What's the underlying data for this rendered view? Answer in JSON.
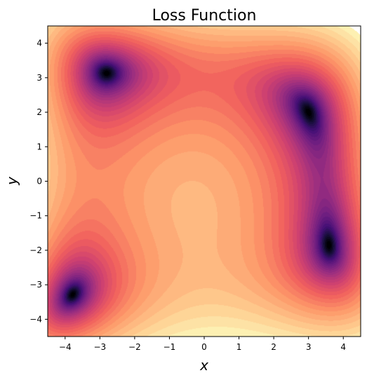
{
  "chart_data": {
    "type": "heatmap",
    "subtype": "filled-contour",
    "title": "Loss Function",
    "xlabel": "x",
    "ylabel": "y",
    "xlim": [
      -4.5,
      4.5
    ],
    "ylim": [
      -4.5,
      4.5
    ],
    "xticks": [
      -4,
      -3,
      -2,
      -1,
      0,
      1,
      2,
      3,
      4
    ],
    "yticks": [
      -4,
      -3,
      -2,
      -1,
      0,
      1,
      2,
      3,
      4
    ],
    "xtick_labels": [
      "−4",
      "−3",
      "−2",
      "−1",
      "0",
      "1",
      "2",
      "3",
      "4"
    ],
    "ytick_labels": [
      "−4",
      "−3",
      "−2",
      "−1",
      "0",
      "1",
      "2",
      "3",
      "4"
    ],
    "colormap": "magma_r",
    "colormap_stops": [
      "#fcfdbf",
      "#feca8d",
      "#fd9668",
      "#f1605d",
      "#cd4071",
      "#9e2f7f",
      "#721f81",
      "#440f76",
      "#180f3d",
      "#000004"
    ],
    "grid": false,
    "legend": "none",
    "minima": [
      {
        "x": -2.805,
        "y": 3.131
      },
      {
        "x": 3.0,
        "y": 2.0
      },
      {
        "x": -3.779,
        "y": -3.283
      },
      {
        "x": 3.584,
        "y": -1.848
      }
    ]
  }
}
